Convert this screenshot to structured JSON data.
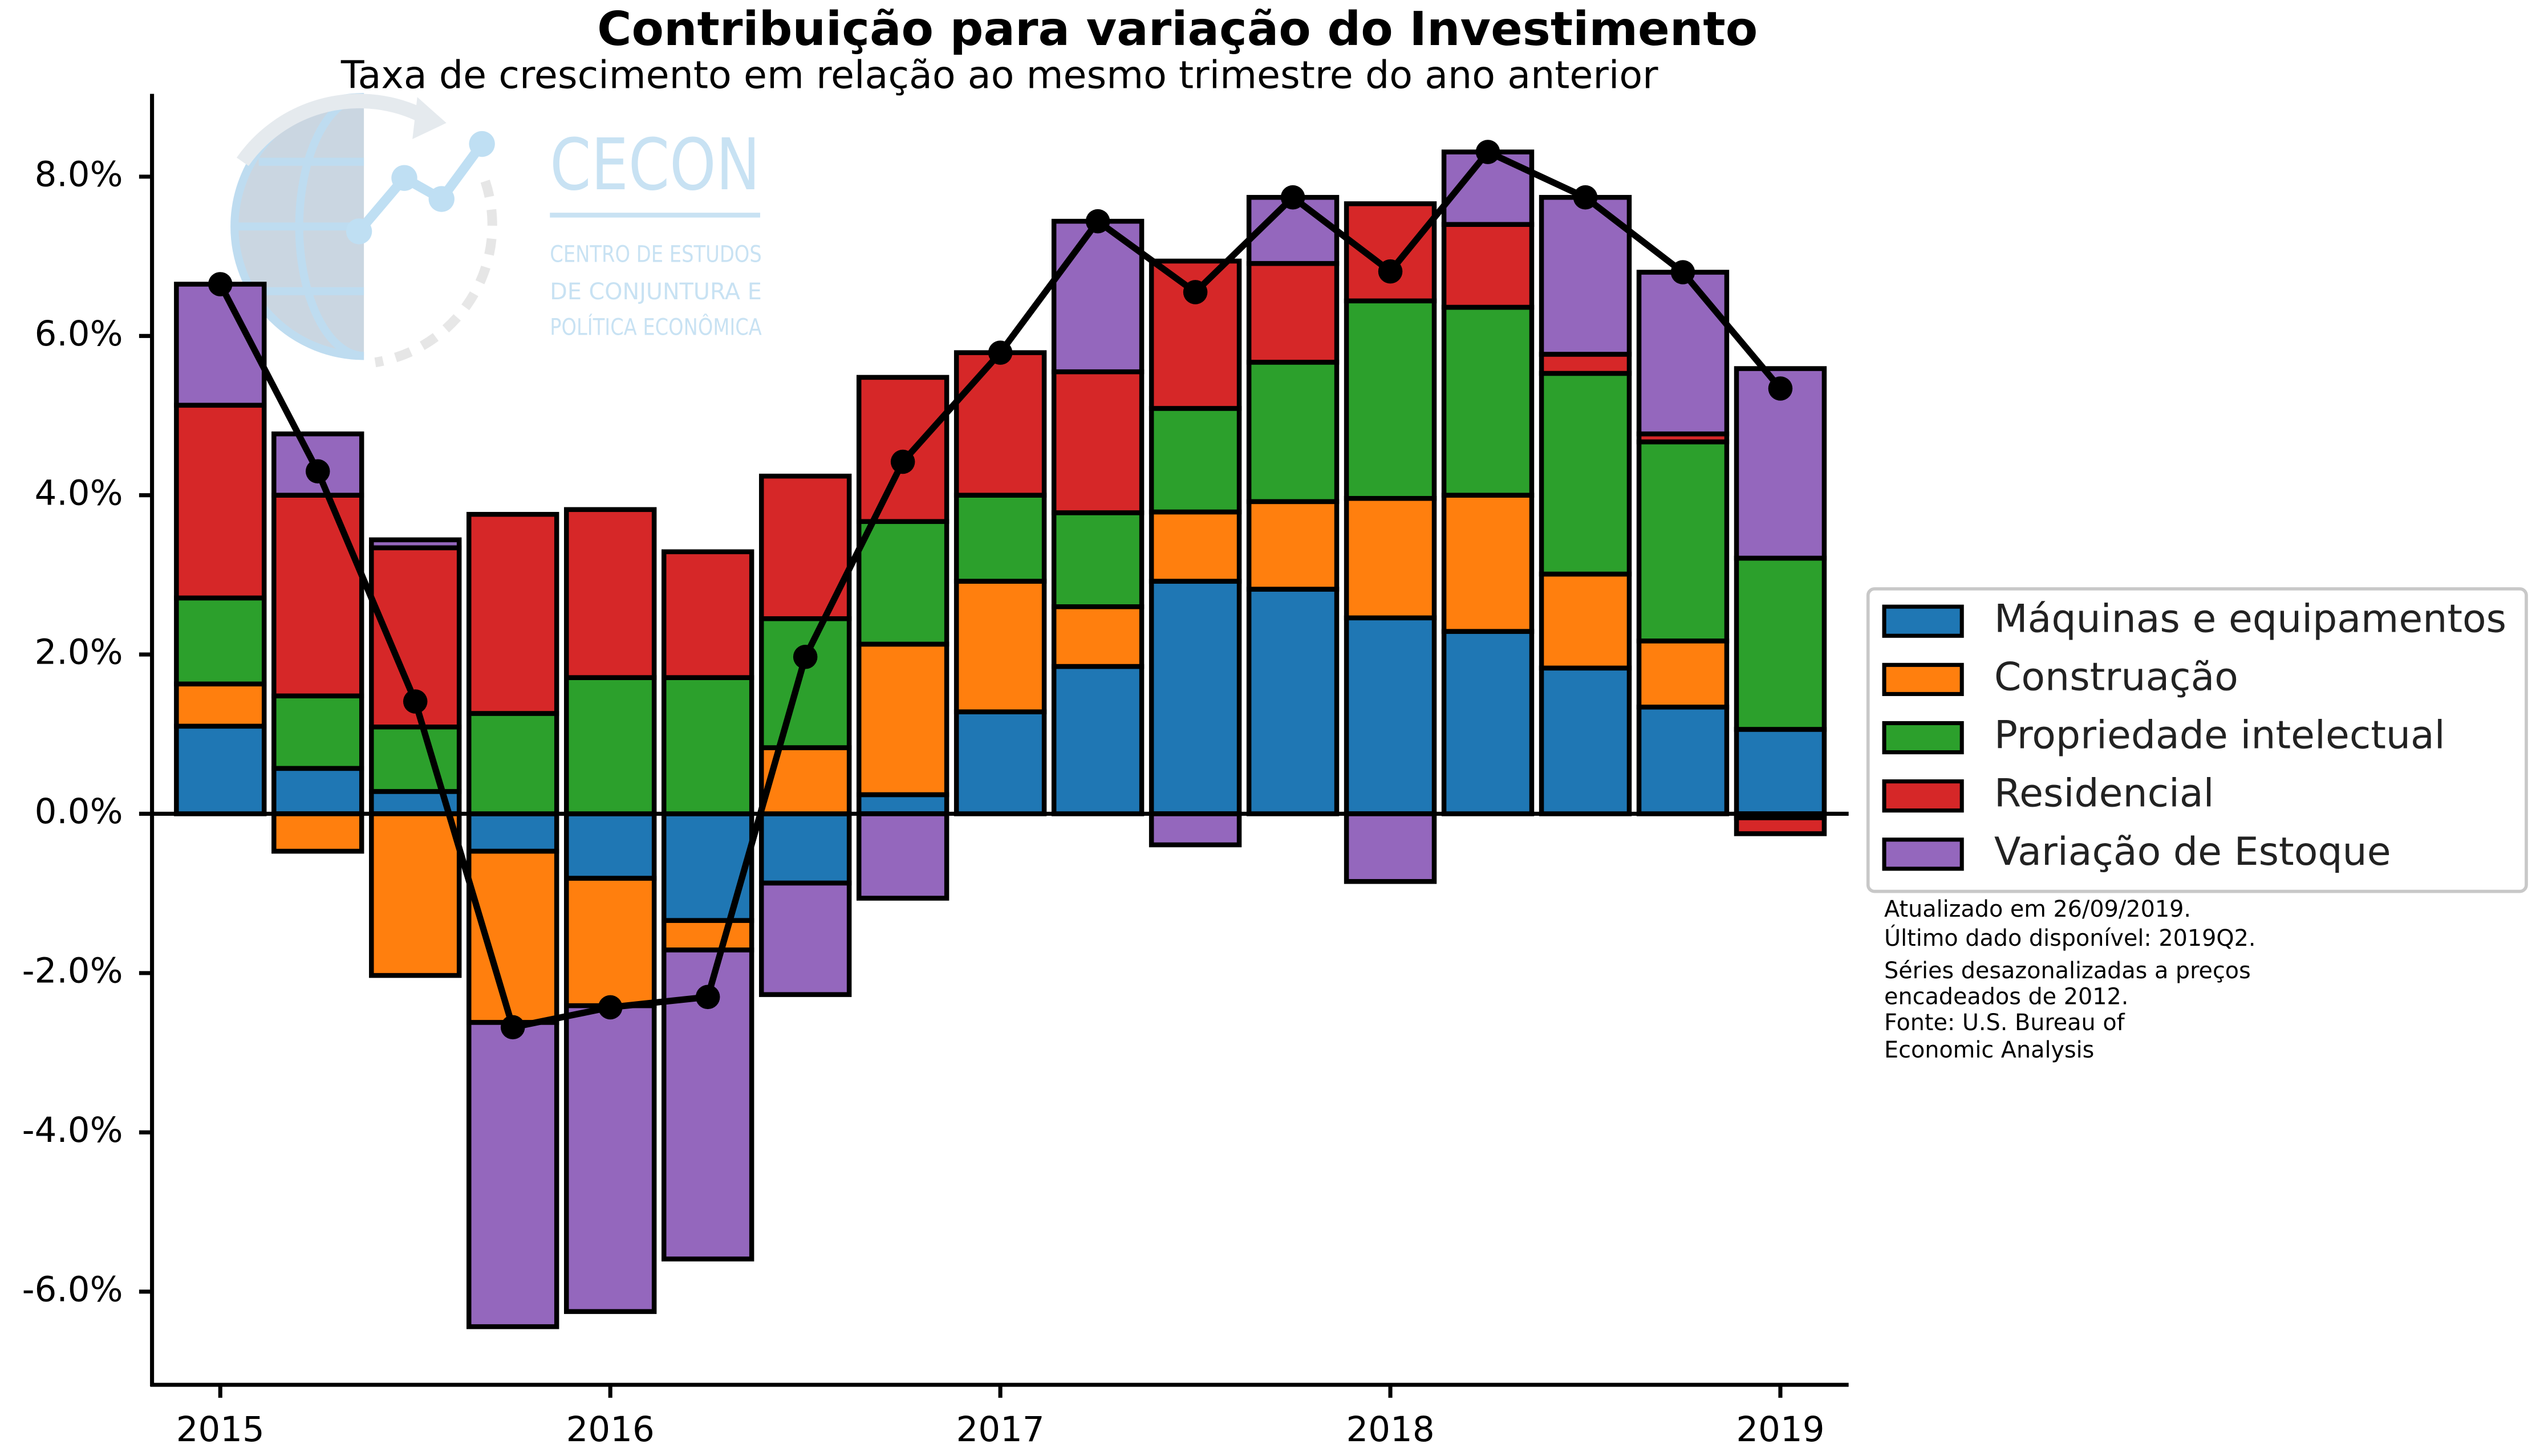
{
  "logo": {
    "name": "CECON",
    "lines": [
      "CENTRO DE ESTUDOS",
      "DE CONJUNTURA E",
      "POLÍTICA ECONÔMICA"
    ],
    "color": "#c3dff2"
  },
  "chart_data": {
    "type": "bar",
    "stacked": true,
    "title": "Contribuição para variação do Investimento",
    "subtitle": "Taxa de crescimento em relação ao mesmo trimestre do ano anterior",
    "xlabel": "",
    "ylabel": "",
    "ylim": [
      -7.17,
      9.04
    ],
    "grid": false,
    "legend_position": "right",
    "x_ticks": [
      {
        "index": 0,
        "label": "2015"
      },
      {
        "index": 4,
        "label": "2016"
      },
      {
        "index": 8,
        "label": "2017"
      },
      {
        "index": 12,
        "label": "2018"
      },
      {
        "index": 16,
        "label": "2019"
      }
    ],
    "y_ticks": [
      {
        "value": 8,
        "label": "8.0%"
      },
      {
        "value": 6,
        "label": "6.0%"
      },
      {
        "value": 4,
        "label": "4.0%"
      },
      {
        "value": 2,
        "label": "2.0%"
      },
      {
        "value": 0,
        "label": "0.0%"
      },
      {
        "value": -2,
        "label": "-2.0%"
      },
      {
        "value": -4,
        "label": "-4.0%"
      },
      {
        "value": -6,
        "label": "-6.0%"
      }
    ],
    "series": [
      {
        "name": "Máquinas e equipamentos",
        "color": "#1f77b4",
        "values": [
          1.1,
          0.57,
          0.28,
          -0.47,
          -0.81,
          -1.34,
          -0.87,
          0.24,
          1.28,
          1.85,
          2.92,
          2.82,
          2.46,
          2.29,
          1.83,
          1.34,
          1.06
        ]
      },
      {
        "name": "Construação",
        "color": "#ff7f0e",
        "values": [
          0.53,
          -0.47,
          -2.03,
          -2.15,
          -1.6,
          -0.37,
          0.83,
          1.89,
          1.64,
          0.75,
          0.87,
          1.1,
          1.5,
          1.71,
          1.18,
          0.83,
          -0.05
        ]
      },
      {
        "name": "Propriedade intelectual",
        "color": "#2ca02c",
        "values": [
          1.08,
          0.91,
          0.81,
          1.26,
          1.71,
          1.71,
          1.62,
          1.54,
          1.08,
          1.18,
          1.3,
          1.75,
          2.48,
          2.36,
          2.52,
          2.5,
          2.15
        ]
      },
      {
        "name": "Residencial",
        "color": "#d62728",
        "values": [
          2.42,
          2.52,
          2.25,
          2.5,
          2.11,
          1.58,
          1.79,
          1.81,
          1.79,
          1.77,
          1.85,
          1.24,
          1.22,
          1.04,
          0.24,
          0.1,
          -0.2
        ]
      },
      {
        "name": "Variação de Estoque",
        "color": "#9467bd",
        "values": [
          1.52,
          0.77,
          0.1,
          -3.82,
          -3.84,
          -3.88,
          -1.4,
          -1.06,
          0.0,
          1.89,
          -0.39,
          0.83,
          -0.85,
          0.91,
          1.97,
          2.03,
          2.38
        ]
      }
    ],
    "total_line": {
      "color": "#000000",
      "values": [
        6.65,
        4.3,
        1.41,
        -2.68,
        -2.43,
        -2.3,
        1.97,
        4.42,
        5.79,
        7.44,
        6.55,
        7.74,
        6.81,
        8.31,
        7.74,
        6.8,
        5.34
      ]
    },
    "annotations": [
      "Atualizado em 26/09/2019.",
      "Último dado disponível: 2019Q2.",
      "Séries desazonalizadas a preços",
      "encadeados de 2012.",
      "Fonte: U.S. Bureau of",
      "Economic Analysis"
    ]
  }
}
